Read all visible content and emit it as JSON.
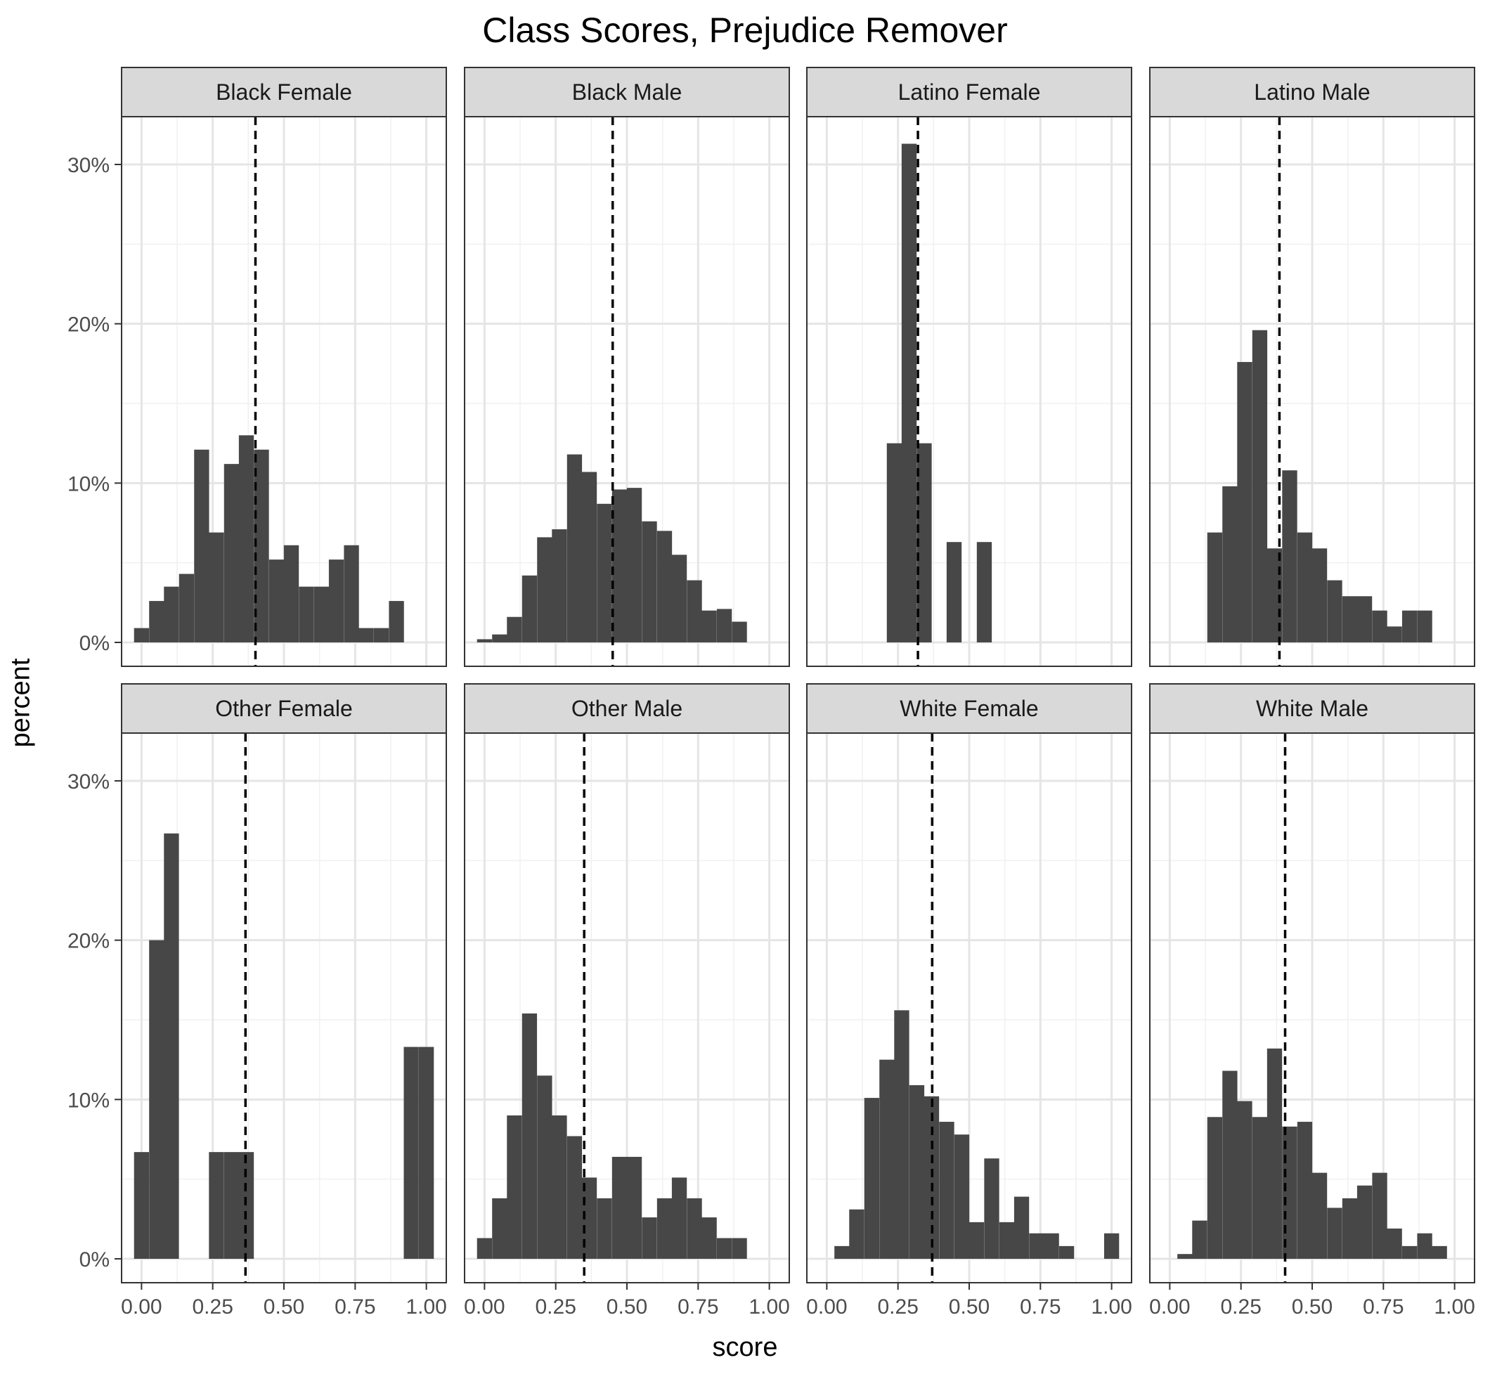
{
  "title": "Class Scores, Prejudice Remover",
  "chart_data": {
    "type": "bar",
    "title": "Class Scores, Prejudice Remover",
    "xlabel": "score",
    "ylabel": "percent",
    "xlim": [
      -0.07,
      1.07
    ],
    "ylim": [
      -0.015,
      0.33
    ],
    "x_ticks": [
      0,
      0.25,
      0.5,
      0.75,
      1
    ],
    "x_tick_labels": [
      "0.00",
      "0.25",
      "0.50",
      "0.75",
      "1.00"
    ],
    "y_ticks": [
      0,
      0.1,
      0.2,
      0.3
    ],
    "y_tick_labels": [
      "0%",
      "10%",
      "20%",
      "30%"
    ],
    "grid": true,
    "bin_width": 0.0526,
    "panels": [
      {
        "name": "Black Female",
        "mean": 0.4,
        "centers": [
          0.0,
          0.053,
          0.105,
          0.158,
          0.211,
          0.263,
          0.316,
          0.368,
          0.421,
          0.474,
          0.526,
          0.579,
          0.632,
          0.684,
          0.737,
          0.789,
          0.842,
          0.895
        ],
        "values": [
          0.009,
          0.026,
          0.035,
          0.043,
          0.121,
          0.069,
          0.112,
          0.13,
          0.121,
          0.052,
          0.061,
          0.035,
          0.035,
          0.052,
          0.061,
          0.009,
          0.009,
          0.026
        ]
      },
      {
        "name": "Black Male",
        "mean": 0.45,
        "centers": [
          0.0,
          0.053,
          0.105,
          0.158,
          0.211,
          0.263,
          0.316,
          0.368,
          0.421,
          0.474,
          0.526,
          0.579,
          0.632,
          0.684,
          0.737,
          0.789,
          0.842,
          0.895
        ],
        "values": [
          0.002,
          0.005,
          0.016,
          0.042,
          0.066,
          0.071,
          0.118,
          0.107,
          0.087,
          0.096,
          0.097,
          0.076,
          0.07,
          0.055,
          0.039,
          0.02,
          0.021,
          0.013
        ]
      },
      {
        "name": "Latino Female",
        "mean": 0.32,
        "centers": [
          0.237,
          0.289,
          0.342,
          0.447,
          0.553
        ],
        "values": [
          0.125,
          0.313,
          0.125,
          0.063,
          0.063
        ]
      },
      {
        "name": "Latino Male",
        "mean": 0.385,
        "centers": [
          0.158,
          0.211,
          0.263,
          0.316,
          0.368,
          0.421,
          0.474,
          0.526,
          0.579,
          0.632,
          0.684,
          0.737,
          0.789,
          0.842,
          0.895
        ],
        "values": [
          0.069,
          0.098,
          0.176,
          0.196,
          0.059,
          0.108,
          0.069,
          0.059,
          0.039,
          0.029,
          0.029,
          0.02,
          0.01,
          0.02,
          0.02
        ]
      },
      {
        "name": "Other Female",
        "mean": 0.365,
        "centers": [
          0.0,
          0.053,
          0.105,
          0.263,
          0.316,
          0.368,
          0.947,
          1.0
        ],
        "values": [
          0.067,
          0.2,
          0.267,
          0.067,
          0.067,
          0.067,
          0.133,
          0.133
        ]
      },
      {
        "name": "Other Male",
        "mean": 0.35,
        "centers": [
          0.0,
          0.053,
          0.105,
          0.158,
          0.211,
          0.263,
          0.316,
          0.368,
          0.421,
          0.474,
          0.526,
          0.579,
          0.632,
          0.684,
          0.737,
          0.789,
          0.842,
          0.895
        ],
        "values": [
          0.013,
          0.038,
          0.09,
          0.154,
          0.115,
          0.09,
          0.077,
          0.051,
          0.038,
          0.064,
          0.064,
          0.026,
          0.038,
          0.051,
          0.038,
          0.026,
          0.013,
          0.013
        ]
      },
      {
        "name": "White Female",
        "mean": 0.37,
        "centers": [
          0.053,
          0.105,
          0.158,
          0.211,
          0.263,
          0.316,
          0.368,
          0.421,
          0.474,
          0.526,
          0.579,
          0.632,
          0.684,
          0.737,
          0.789,
          0.842,
          1.0
        ],
        "values": [
          0.008,
          0.031,
          0.101,
          0.125,
          0.156,
          0.109,
          0.102,
          0.086,
          0.078,
          0.023,
          0.063,
          0.023,
          0.039,
          0.016,
          0.016,
          0.008,
          0.016
        ]
      },
      {
        "name": "White Male",
        "mean": 0.405,
        "centers": [
          0.053,
          0.105,
          0.158,
          0.211,
          0.263,
          0.316,
          0.368,
          0.421,
          0.474,
          0.526,
          0.579,
          0.632,
          0.684,
          0.737,
          0.789,
          0.842,
          0.895,
          0.947
        ],
        "values": [
          0.003,
          0.024,
          0.089,
          0.118,
          0.099,
          0.089,
          0.132,
          0.083,
          0.086,
          0.054,
          0.032,
          0.038,
          0.046,
          0.054,
          0.019,
          0.008,
          0.016,
          0.008
        ]
      }
    ]
  }
}
